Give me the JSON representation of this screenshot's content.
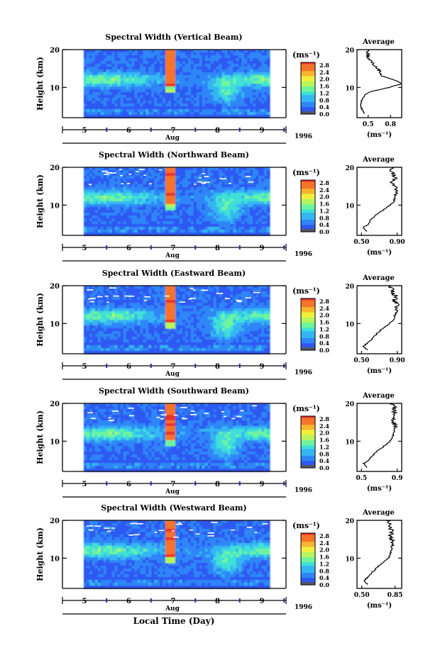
{
  "chart_data": {
    "type": "heatmap",
    "common": {
      "x_ticks": [
        "5",
        "6",
        "7",
        "8",
        "9"
      ],
      "month_label": "Aug",
      "year_label": "1996",
      "xlabel": "Local Time (Day)",
      "ylabel": "Height (km)",
      "y_ticks": [
        "20",
        "10"
      ],
      "ylim": [
        2,
        20
      ],
      "colorbar_unit": "(ms⁻¹)",
      "colorbar_ticks": [
        "2.8",
        "2.4",
        "2.0",
        "1.6",
        "1.2",
        "0.8",
        "0.4",
        "0.0"
      ],
      "colorbar_range": [
        0,
        3.0
      ],
      "colormap": [
        "#2b2bd6",
        "#2f58f2",
        "#2f86f7",
        "#34b6f2",
        "#3fe0d8",
        "#6ef59c",
        "#b7f55c",
        "#f1ef3b",
        "#f7b52f",
        "#f6732a",
        "#e8322a"
      ],
      "average_title": "Average",
      "average_xunit": "(ms⁻¹)"
    },
    "panels": [
      {
        "title": "Spectral Width (Vertical Beam)",
        "avg_ticks": [
          "0.5",
          "0.8"
        ],
        "avg_xlim": [
          0.35,
          0.95
        ],
        "average_profile": [
          [
            3,
            0.45
          ],
          [
            4,
            0.42
          ],
          [
            5,
            0.4
          ],
          [
            6,
            0.4
          ],
          [
            7,
            0.42
          ],
          [
            8,
            0.45
          ],
          [
            9,
            0.55
          ],
          [
            10,
            0.78
          ],
          [
            11,
            0.95
          ],
          [
            12,
            0.85
          ],
          [
            13,
            0.7
          ],
          [
            14,
            0.66
          ],
          [
            15,
            0.62
          ],
          [
            16,
            0.56
          ],
          [
            17,
            0.55
          ],
          [
            18,
            0.5
          ],
          [
            19,
            0.5
          ],
          [
            20,
            0.48
          ]
        ]
      },
      {
        "title": "Spectral Width (Northward Beam)",
        "avg_ticks": [
          "0.50",
          "0.90"
        ],
        "avg_xlim": [
          0.45,
          0.95
        ],
        "average_profile": [
          [
            3,
            0.56
          ],
          [
            4,
            0.52
          ],
          [
            5,
            0.58
          ],
          [
            6,
            0.6
          ],
          [
            7,
            0.65
          ],
          [
            8,
            0.7
          ],
          [
            9,
            0.76
          ],
          [
            10,
            0.82
          ],
          [
            11,
            0.86
          ],
          [
            12,
            0.87
          ],
          [
            13,
            0.88
          ],
          [
            14,
            0.89
          ],
          [
            15,
            0.87
          ],
          [
            16,
            0.84
          ],
          [
            17,
            0.88
          ],
          [
            18,
            0.86
          ],
          [
            19,
            0.84
          ],
          [
            20,
            0.85
          ]
        ]
      },
      {
        "title": "Spectral Width (Eastward Beam)",
        "avg_ticks": [
          "0.50",
          "0.90"
        ],
        "avg_xlim": [
          0.45,
          0.95
        ],
        "average_profile": [
          [
            3,
            0.57
          ],
          [
            4,
            0.52
          ],
          [
            5,
            0.58
          ],
          [
            6,
            0.62
          ],
          [
            7,
            0.66
          ],
          [
            8,
            0.7
          ],
          [
            9,
            0.76
          ],
          [
            10,
            0.81
          ],
          [
            11,
            0.86
          ],
          [
            12,
            0.87
          ],
          [
            13,
            0.89
          ],
          [
            14,
            0.88
          ],
          [
            15,
            0.9
          ],
          [
            16,
            0.86
          ],
          [
            17,
            0.89
          ],
          [
            18,
            0.85
          ],
          [
            19,
            0.84
          ],
          [
            20,
            0.82
          ]
        ]
      },
      {
        "title": "Spectral Width (Southward Beam)",
        "avg_ticks": [
          "0.5",
          "0.9"
        ],
        "avg_xlim": [
          0.45,
          0.95
        ],
        "average_profile": [
          [
            3,
            0.56
          ],
          [
            4,
            0.52
          ],
          [
            5,
            0.58
          ],
          [
            6,
            0.62
          ],
          [
            7,
            0.66
          ],
          [
            8,
            0.71
          ],
          [
            9,
            0.77
          ],
          [
            10,
            0.82
          ],
          [
            11,
            0.85
          ],
          [
            12,
            0.86
          ],
          [
            13,
            0.87
          ],
          [
            14,
            0.88
          ],
          [
            15,
            0.86
          ],
          [
            16,
            0.85
          ],
          [
            17,
            0.88
          ],
          [
            18,
            0.86
          ],
          [
            19,
            0.87
          ],
          [
            20,
            0.85
          ]
        ]
      },
      {
        "title": "Spectral Width (Westward Beam)",
        "avg_ticks": [
          "0.50",
          "0.85"
        ],
        "avg_xlim": [
          0.45,
          0.92
        ],
        "average_profile": [
          [
            3,
            0.56
          ],
          [
            4,
            0.52
          ],
          [
            5,
            0.57
          ],
          [
            6,
            0.6
          ],
          [
            7,
            0.64
          ],
          [
            8,
            0.68
          ],
          [
            9,
            0.73
          ],
          [
            10,
            0.78
          ],
          [
            11,
            0.8
          ],
          [
            12,
            0.81
          ],
          [
            13,
            0.82
          ],
          [
            14,
            0.83
          ],
          [
            15,
            0.81
          ],
          [
            16,
            0.8
          ],
          [
            17,
            0.82
          ],
          [
            18,
            0.8
          ],
          [
            19,
            0.79
          ],
          [
            20,
            0.78
          ]
        ]
      }
    ]
  }
}
